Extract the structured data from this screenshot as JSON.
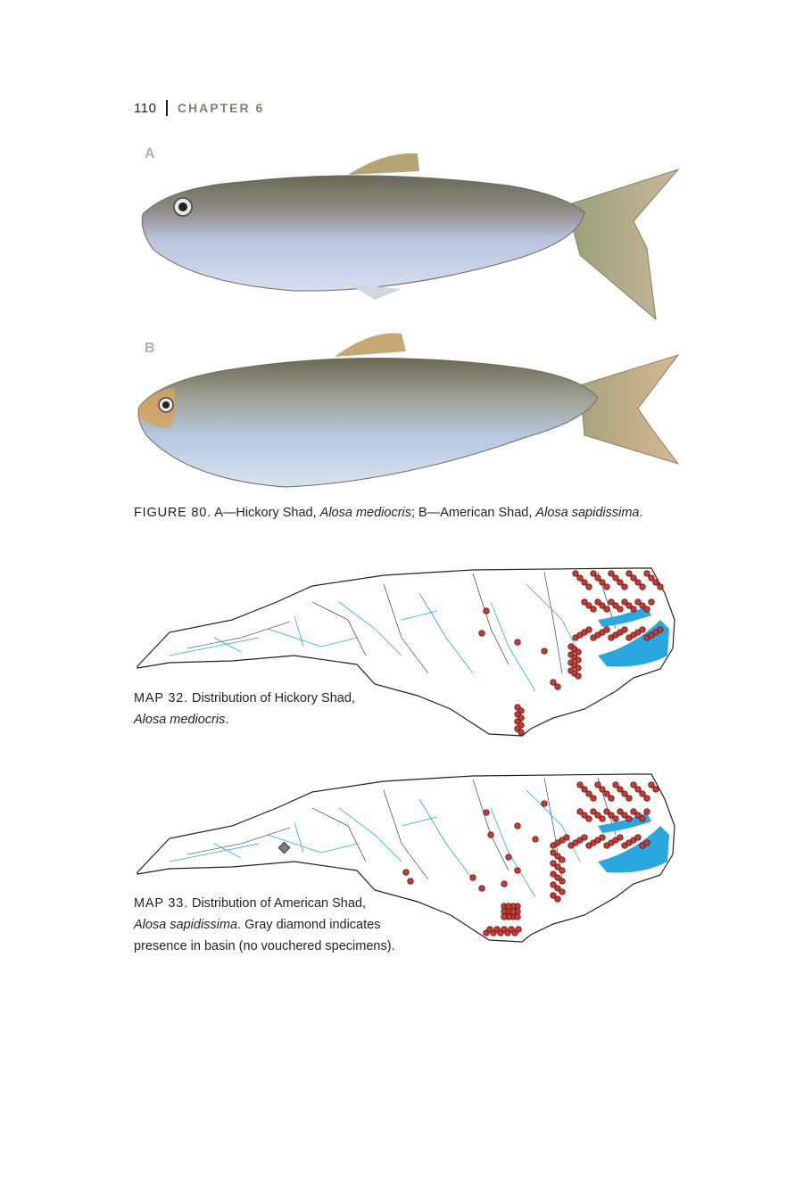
{
  "header": {
    "page_number": "110",
    "chapter": "CHAPTER 6"
  },
  "figure": {
    "panel_a": "A",
    "panel_b": "B",
    "label": "FIGURE 80.",
    "text_1": " A—Hickory Shad, ",
    "species_1": "Alosa mediocris",
    "text_2": "; B—American Shad, ",
    "species_2": "Alosa sapidissima",
    "text_3": "."
  },
  "map32": {
    "label": "MAP 32.",
    "text": " Distribution of Hickory Shad,",
    "species": "Alosa mediocris",
    "tail": "."
  },
  "map33": {
    "label": "MAP 33.",
    "text": " Distribution of American Shad,",
    "species": "Alosa sapidissima",
    "tail": ". Gray diamond indicates",
    "line3": "presence in basin (no vouchered specimens)."
  },
  "colors": {
    "water": "#29a8e0",
    "record": "#d9342b",
    "diamond": "#7a7a7a",
    "outline": "#231f20"
  }
}
